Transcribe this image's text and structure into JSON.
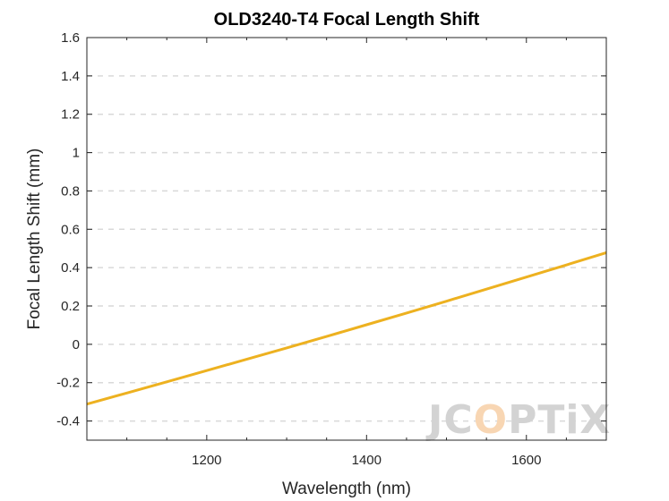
{
  "chart_data": {
    "type": "line",
    "title": "OLD3240-T4 Focal Length Shift",
    "xlabel": "Wavelength (nm)",
    "ylabel": "Focal Length Shift (mm)",
    "xlim": [
      1050,
      1700
    ],
    "ylim": [
      -0.5,
      1.6
    ],
    "xticks": [
      1200,
      1400,
      1600
    ],
    "xtick_labels": [
      "1200",
      "1400",
      "1600"
    ],
    "yticks": [
      -0.4,
      -0.2,
      0,
      0.2,
      0.4,
      0.6,
      0.8,
      1,
      1.2,
      1.4,
      1.6
    ],
    "ytick_labels": [
      "-0.4",
      "-0.2",
      "0",
      "0.2",
      "0.4",
      "0.6",
      "0.8",
      "1",
      "1.2",
      "1.4",
      "1.6"
    ],
    "grid": "horizontal-dashed",
    "series": [
      {
        "color": "#EDB120",
        "x": [
          1050,
          1100,
          1150,
          1200,
          1250,
          1300,
          1350,
          1400,
          1450,
          1500,
          1550,
          1600,
          1650,
          1700
        ],
        "y": [
          -0.312,
          -0.254,
          -0.196,
          -0.137,
          -0.078,
          -0.019,
          0.041,
          0.102,
          0.163,
          0.225,
          0.288,
          0.351,
          0.414,
          0.478
        ]
      }
    ]
  },
  "watermark": {
    "text": "JCOPTIX",
    "colors": {
      "main": "#D3D3D3",
      "accent": "#F8D6B3"
    }
  }
}
